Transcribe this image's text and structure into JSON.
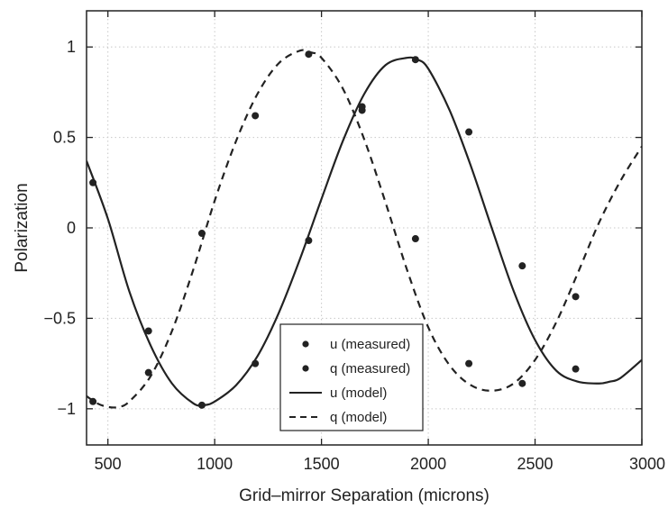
{
  "chart_data": {
    "type": "line",
    "xlabel": "Grid–mirror Separation (microns)",
    "ylabel": "Polarization",
    "xlim": [
      400,
      3000
    ],
    "ylim": [
      -1.2,
      1.2
    ],
    "xticks": [
      500,
      1000,
      1500,
      2000,
      2500,
      3000
    ],
    "xtick_labels": [
      "500",
      "1000",
      "1500",
      "2000",
      "2500",
      "3000"
    ],
    "yticks": [
      -1,
      -0.5,
      0,
      0.5,
      1
    ],
    "ytick_labels": [
      "−1",
      "−0.5",
      "0",
      "0.5",
      "1"
    ],
    "grid": true,
    "legend_position": "bottom-center",
    "series": [
      {
        "name": "u (measured)",
        "kind": "scatter",
        "x": [
          430,
          690,
          940,
          1190,
          1440,
          1690,
          1940,
          2190,
          2440,
          2690
        ],
        "y": [
          0.25,
          -0.57,
          -0.98,
          -0.75,
          -0.07,
          0.67,
          0.93,
          0.53,
          -0.21,
          -0.78
        ]
      },
      {
        "name": "q (measured)",
        "kind": "scatter",
        "x": [
          430,
          690,
          940,
          1190,
          1440,
          1690,
          1940,
          2190,
          2440,
          2690
        ],
        "y": [
          -0.96,
          -0.8,
          -0.03,
          0.62,
          0.96,
          0.65,
          -0.06,
          -0.75,
          -0.86,
          -0.38
        ]
      },
      {
        "name": "u (model)",
        "kind": "line",
        "style": "solid",
        "x": [
          400,
          500,
          600,
          700,
          800,
          900,
          950,
          1000,
          1100,
          1200,
          1300,
          1400,
          1500,
          1600,
          1700,
          1800,
          1900,
          1950,
          2000,
          2100,
          2200,
          2300,
          2400,
          2500,
          2600,
          2700,
          2800,
          2850,
          2900,
          3000
        ],
        "y": [
          0.37,
          0.05,
          -0.35,
          -0.65,
          -0.86,
          -0.97,
          -0.98,
          -0.96,
          -0.87,
          -0.71,
          -0.47,
          -0.17,
          0.16,
          0.48,
          0.74,
          0.9,
          0.94,
          0.93,
          0.88,
          0.65,
          0.34,
          -0.01,
          -0.35,
          -0.62,
          -0.79,
          -0.85,
          -0.86,
          -0.85,
          -0.83,
          -0.73
        ]
      },
      {
        "name": "q (model)",
        "kind": "line",
        "style": "dashed",
        "x": [
          400,
          450,
          500,
          550,
          600,
          700,
          800,
          900,
          1000,
          1100,
          1200,
          1300,
          1400,
          1450,
          1500,
          1600,
          1700,
          1800,
          1900,
          2000,
          2100,
          2200,
          2300,
          2400,
          2500,
          2600,
          2700,
          2800,
          2900,
          3000
        ],
        "y": [
          -0.93,
          -0.97,
          -0.99,
          -0.99,
          -0.96,
          -0.82,
          -0.57,
          -0.23,
          0.15,
          0.48,
          0.74,
          0.91,
          0.98,
          0.97,
          0.94,
          0.77,
          0.49,
          0.14,
          -0.23,
          -0.55,
          -0.76,
          -0.87,
          -0.9,
          -0.86,
          -0.73,
          -0.52,
          -0.25,
          0.03,
          0.26,
          0.45
        ]
      }
    ]
  },
  "colors": {
    "line": "#222222",
    "grid": "#c8c8c8",
    "background": "#ffffff"
  }
}
